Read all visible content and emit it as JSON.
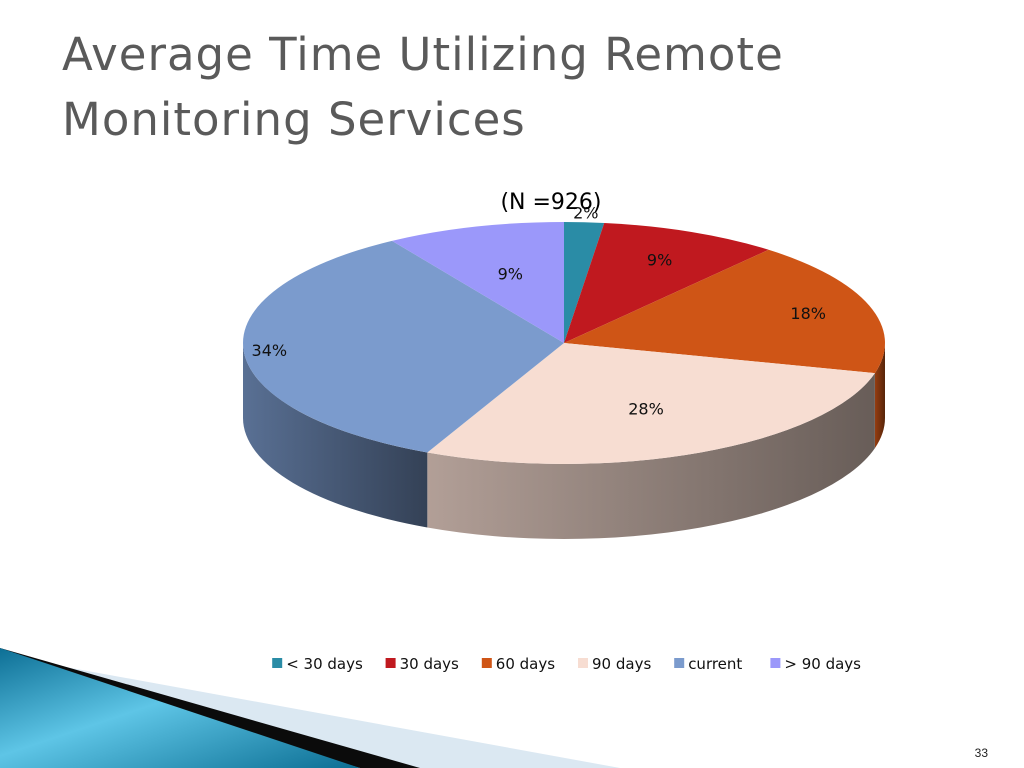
{
  "slide": {
    "title_line1": "Average Time Utilizing Remote",
    "title_line2": "Monitoring Services",
    "page_number": "33"
  },
  "chart_data": {
    "type": "pie",
    "title": "",
    "subtitle": "(N =926)",
    "three_d": true,
    "legend_position": "bottom",
    "categories": [
      "< 30 days",
      "30 days",
      "60 days",
      "90 days",
      "current",
      "> 90 days"
    ],
    "values": [
      2,
      9,
      18,
      28,
      34,
      9
    ],
    "labels": [
      "2%",
      "9%",
      "18%",
      "28%",
      "34%",
      "9%"
    ],
    "colors": [
      "#2a8ca6",
      "#c0191f",
      "#cf5516",
      "#f7ddd2",
      "#7b9bcd",
      "#9b98fa"
    ]
  },
  "theme": {
    "title_color": "#5a5a5a",
    "accent_teal": "#1e86a8"
  }
}
